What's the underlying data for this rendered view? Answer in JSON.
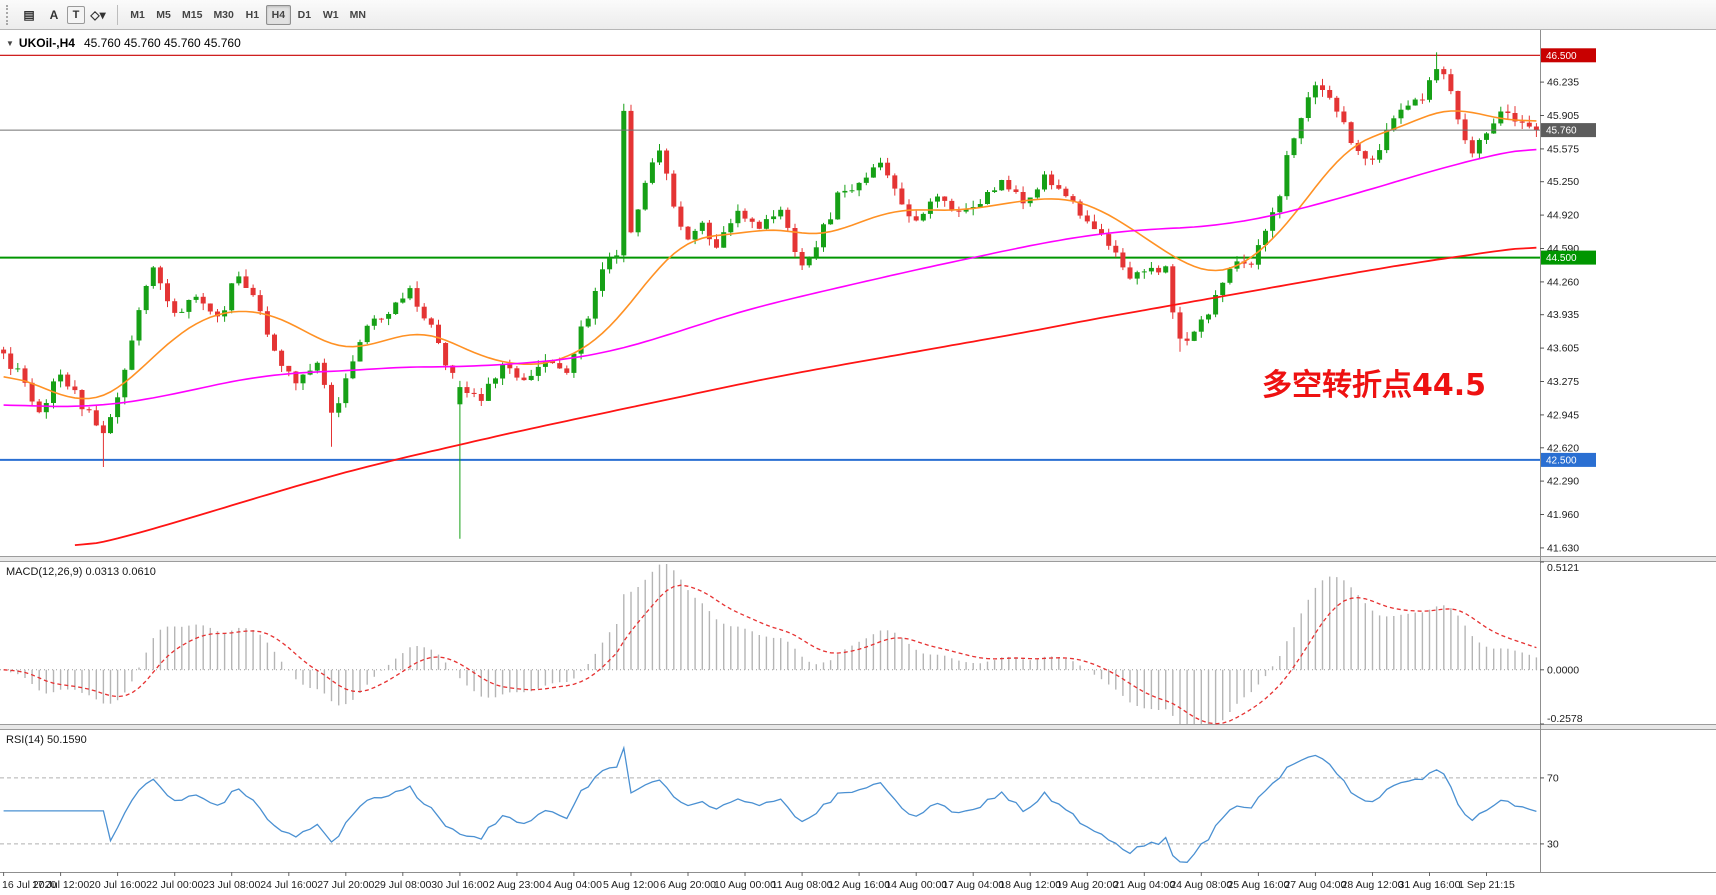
{
  "toolbar": {
    "tools": [
      {
        "name": "chart-objects-icon",
        "glyph": "▤",
        "boxed": false
      },
      {
        "name": "text-annotation-icon",
        "glyph": "A",
        "boxed": false
      },
      {
        "name": "text-frame-icon",
        "glyph": "T",
        "boxed": true
      },
      {
        "name": "draw-shapes-dropdown-icon",
        "glyph": "◇▾",
        "boxed": false
      }
    ],
    "timeframes": [
      {
        "label": "M1",
        "active": false
      },
      {
        "label": "M5",
        "active": false
      },
      {
        "label": "M15",
        "active": false
      },
      {
        "label": "M30",
        "active": false
      },
      {
        "label": "H1",
        "active": false
      },
      {
        "label": "H4",
        "active": true
      },
      {
        "label": "D1",
        "active": false
      },
      {
        "label": "W1",
        "active": false
      },
      {
        "label": "MN",
        "active": false
      }
    ]
  },
  "main_chart": {
    "title": {
      "marker": "▼",
      "symbol": "UKOil-,H4",
      "ohlc": "45.760 45.760 45.760 45.760"
    },
    "annotation": {
      "text": "多空转折点44.5",
      "color": "#ee1111"
    },
    "price_axis": {
      "ticks": [
        "46.235",
        "45.905",
        "45.575",
        "45.250",
        "44.920",
        "44.590",
        "44.260",
        "43.935",
        "43.605",
        "43.275",
        "42.945",
        "42.620",
        "42.290",
        "41.960",
        "41.630"
      ],
      "badges": [
        {
          "value": "46.500",
          "color": "#c80000"
        },
        {
          "value": "45.760",
          "color": "#5c5c5c"
        },
        {
          "value": "44.500",
          "color": "#009600"
        },
        {
          "value": "42.500",
          "color": "#2a6fd2"
        }
      ]
    }
  },
  "macd_panel": {
    "label": "MACD(12,26,9) 0.0313 0.0610",
    "axis": [
      "0.5121",
      "0.0000",
      "-0.2578"
    ]
  },
  "rsi_panel": {
    "label": "RSI(14) 50.1590",
    "levels": [
      "70",
      "30"
    ]
  },
  "time_axis": {
    "labels": [
      "16 Jul 2020",
      "17 Jul 12:00",
      "20 Jul 16:00",
      "22 Jul 00:00",
      "23 Jul 08:00",
      "24 Jul 16:00",
      "27 Jul 20:00",
      "29 Jul 08:00",
      "30 Jul 16:00",
      "2 Aug 23:00",
      "4 Aug 04:00",
      "5 Aug 12:00",
      "6 Aug 20:00",
      "10 Aug 00:00",
      "11 Aug 08:00",
      "12 Aug 16:00",
      "14 Aug 00:00",
      "17 Aug 04:00",
      "18 Aug 12:00",
      "19 Aug 20:00",
      "21 Aug 04:00",
      "24 Aug 08:00",
      "25 Aug 16:00",
      "27 Aug 04:00",
      "28 Aug 12:00",
      "31 Aug 16:00",
      "1 Sep 21:15"
    ]
  },
  "chart_data": {
    "type": "candlestick",
    "symbol": "UKOil-",
    "period": "H4",
    "ohlc_current": {
      "open": 45.76,
      "high": 45.76,
      "low": 45.76,
      "close": 45.76
    },
    "bars": 216,
    "label_every": 8,
    "price_range": [
      41.55,
      46.75
    ],
    "hlines": [
      {
        "price": 46.5,
        "color": "#c80000",
        "width": 1.2
      },
      {
        "price": 44.5,
        "color": "#009600",
        "width": 2
      },
      {
        "price": 42.5,
        "color": "#2a6fd2",
        "width": 2
      }
    ],
    "bid_line": {
      "price": 45.76,
      "color": "#707070"
    },
    "up_color": "#16a016",
    "down_color": "#e43434",
    "close_anchors": [
      [
        0,
        43.55
      ],
      [
        2,
        43.35
      ],
      [
        5,
        42.98
      ],
      [
        8,
        43.35
      ],
      [
        11,
        43.05
      ],
      [
        14,
        42.78
      ],
      [
        16,
        43.1
      ],
      [
        19,
        43.95
      ],
      [
        21,
        44.38
      ],
      [
        24,
        43.95
      ],
      [
        27,
        44.1
      ],
      [
        30,
        43.9
      ],
      [
        33,
        44.32
      ],
      [
        35,
        44.1
      ],
      [
        38,
        43.6
      ],
      [
        41,
        43.25
      ],
      [
        44,
        43.45
      ],
      [
        46,
        42.95
      ],
      [
        48,
        43.3
      ],
      [
        51,
        43.85
      ],
      [
        54,
        43.95
      ],
      [
        57,
        44.18
      ],
      [
        60,
        43.8
      ],
      [
        63,
        43.3
      ],
      [
        64,
        43.18
      ],
      [
        67,
        43.1
      ],
      [
        70,
        43.45
      ],
      [
        73,
        43.3
      ],
      [
        76,
        43.5
      ],
      [
        79,
        43.4
      ],
      [
        82,
        43.95
      ],
      [
        84,
        44.4
      ],
      [
        86,
        44.55
      ],
      [
        87,
        45.95
      ],
      [
        88,
        44.75
      ],
      [
        90,
        45.3
      ],
      [
        92,
        45.55
      ],
      [
        94,
        45.0
      ],
      [
        96,
        44.65
      ],
      [
        98,
        44.85
      ],
      [
        100,
        44.6
      ],
      [
        103,
        44.95
      ],
      [
        106,
        44.8
      ],
      [
        109,
        44.95
      ],
      [
        112,
        44.45
      ],
      [
        114,
        44.6
      ],
      [
        117,
        45.1
      ],
      [
        120,
        45.25
      ],
      [
        123,
        45.45
      ],
      [
        126,
        45.05
      ],
      [
        128,
        44.85
      ],
      [
        131,
        45.1
      ],
      [
        134,
        44.95
      ],
      [
        137,
        45.05
      ],
      [
        140,
        45.25
      ],
      [
        143,
        45.05
      ],
      [
        146,
        45.3
      ],
      [
        149,
        45.1
      ],
      [
        152,
        44.85
      ],
      [
        155,
        44.6
      ],
      [
        158,
        44.3
      ],
      [
        161,
        44.4
      ],
      [
        163,
        44.35
      ],
      [
        164,
        44.0
      ],
      [
        165,
        43.65
      ],
      [
        167,
        43.78
      ],
      [
        170,
        44.1
      ],
      [
        173,
        44.45
      ],
      [
        175,
        44.4
      ],
      [
        178,
        44.9
      ],
      [
        180,
        45.45
      ],
      [
        182,
        45.9
      ],
      [
        184,
        46.2
      ],
      [
        186,
        46.1
      ],
      [
        188,
        45.8
      ],
      [
        190,
        45.55
      ],
      [
        192,
        45.45
      ],
      [
        194,
        45.75
      ],
      [
        196,
        46.0
      ],
      [
        199,
        46.1
      ],
      [
        201,
        46.38
      ],
      [
        202,
        46.3
      ],
      [
        204,
        45.9
      ],
      [
        206,
        45.55
      ],
      [
        208,
        45.75
      ],
      [
        210,
        45.95
      ],
      [
        212,
        45.85
      ],
      [
        215,
        45.76
      ]
    ],
    "overrides": [
      {
        "bar": 14,
        "l": 42.43
      },
      {
        "bar": 46,
        "l": 42.63
      },
      {
        "bar": 64,
        "o": 43.05,
        "c": 43.22,
        "l": 41.72
      },
      {
        "bar": 87,
        "c": 45.95,
        "h": 46.02
      },
      {
        "bar": 88,
        "c": 44.75
      },
      {
        "bar": 165,
        "l": 43.57
      },
      {
        "bar": 201,
        "h": 46.53
      },
      {
        "bar": 215,
        "c": 45.76
      }
    ],
    "ma": {
      "orange": {
        "color": "#ff9124",
        "width": 1.6,
        "anchors": [
          [
            0,
            43.4
          ],
          [
            8,
            43.12
          ],
          [
            14,
            43.05
          ],
          [
            20,
            43.45
          ],
          [
            26,
            43.85
          ],
          [
            32,
            44.0
          ],
          [
            38,
            43.95
          ],
          [
            44,
            43.7
          ],
          [
            48,
            43.55
          ],
          [
            54,
            43.7
          ],
          [
            60,
            43.8
          ],
          [
            64,
            43.6
          ],
          [
            70,
            43.45
          ],
          [
            76,
            43.42
          ],
          [
            82,
            43.6
          ],
          [
            86,
            43.85
          ],
          [
            90,
            44.25
          ],
          [
            94,
            44.6
          ],
          [
            98,
            44.75
          ],
          [
            102,
            44.7
          ],
          [
            108,
            44.82
          ],
          [
            114,
            44.68
          ],
          [
            120,
            44.85
          ],
          [
            126,
            45.0
          ],
          [
            132,
            44.95
          ],
          [
            138,
            45.0
          ],
          [
            144,
            45.08
          ],
          [
            150,
            45.1
          ],
          [
            156,
            44.9
          ],
          [
            162,
            44.6
          ],
          [
            166,
            44.42
          ],
          [
            170,
            44.3
          ],
          [
            174,
            44.42
          ],
          [
            178,
            44.65
          ],
          [
            182,
            45.0
          ],
          [
            186,
            45.4
          ],
          [
            190,
            45.7
          ],
          [
            194,
            45.72
          ],
          [
            198,
            45.85
          ],
          [
            202,
            46.0
          ],
          [
            206,
            45.95
          ],
          [
            210,
            45.85
          ],
          [
            215,
            45.85
          ]
        ]
      },
      "magenta": {
        "color": "#ff00ff",
        "width": 1.6,
        "anchors": [
          [
            0,
            43.05
          ],
          [
            8,
            43.02
          ],
          [
            16,
            43.05
          ],
          [
            24,
            43.15
          ],
          [
            32,
            43.28
          ],
          [
            40,
            43.36
          ],
          [
            48,
            43.38
          ],
          [
            56,
            43.42
          ],
          [
            64,
            43.42
          ],
          [
            72,
            43.45
          ],
          [
            80,
            43.5
          ],
          [
            88,
            43.62
          ],
          [
            96,
            43.8
          ],
          [
            104,
            43.98
          ],
          [
            112,
            44.12
          ],
          [
            120,
            44.25
          ],
          [
            128,
            44.38
          ],
          [
            136,
            44.5
          ],
          [
            144,
            44.62
          ],
          [
            152,
            44.72
          ],
          [
            160,
            44.78
          ],
          [
            168,
            44.8
          ],
          [
            176,
            44.88
          ],
          [
            184,
            45.02
          ],
          [
            192,
            45.18
          ],
          [
            200,
            45.35
          ],
          [
            208,
            45.5
          ],
          [
            215,
            45.6
          ]
        ]
      },
      "red": {
        "color": "#ff1414",
        "width": 1.8,
        "anchors": [
          [
            10,
            41.62
          ],
          [
            16,
            41.72
          ],
          [
            24,
            41.88
          ],
          [
            32,
            42.05
          ],
          [
            40,
            42.22
          ],
          [
            48,
            42.38
          ],
          [
            56,
            42.52
          ],
          [
            64,
            42.65
          ],
          [
            72,
            42.78
          ],
          [
            80,
            42.9
          ],
          [
            88,
            43.02
          ],
          [
            96,
            43.14
          ],
          [
            104,
            43.26
          ],
          [
            112,
            43.37
          ],
          [
            120,
            43.47
          ],
          [
            128,
            43.57
          ],
          [
            136,
            43.67
          ],
          [
            144,
            43.77
          ],
          [
            152,
            43.88
          ],
          [
            160,
            43.98
          ],
          [
            168,
            44.08
          ],
          [
            176,
            44.18
          ],
          [
            184,
            44.28
          ],
          [
            192,
            44.38
          ],
          [
            200,
            44.47
          ],
          [
            208,
            44.55
          ],
          [
            215,
            44.62
          ]
        ]
      }
    },
    "macd": {
      "params": [
        12,
        26,
        9
      ],
      "value": 0.0313,
      "signal": 0.061,
      "range": [
        -0.2578,
        0.5121
      ],
      "hist_color": "#b5b5b5",
      "signal_color": "#e63232"
    },
    "rsi": {
      "period": 14,
      "value": 50.159,
      "levels": [
        70,
        30
      ],
      "display_range": [
        13,
        99
      ],
      "color": "#4a90d2"
    },
    "seed": 20200901
  }
}
